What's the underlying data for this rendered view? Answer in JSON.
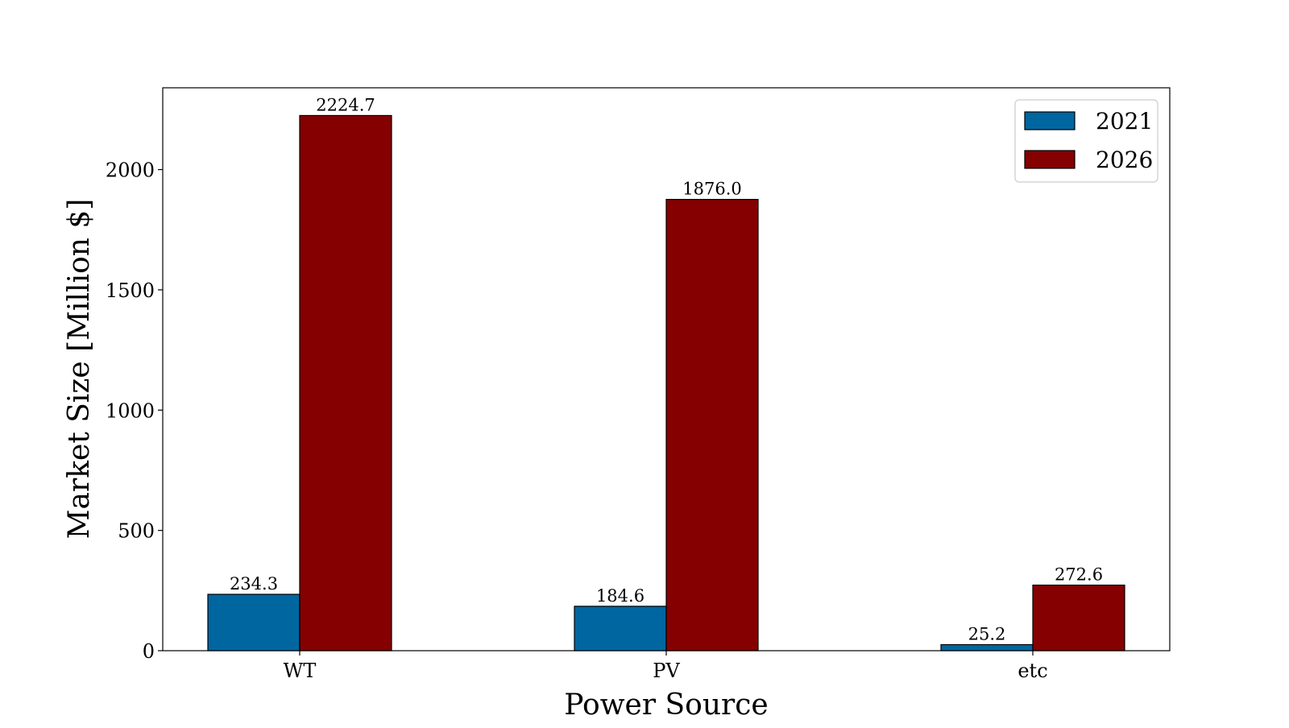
{
  "chart_data": {
    "type": "bar",
    "categories": [
      "WT",
      "PV",
      "etc"
    ],
    "series": [
      {
        "name": "2021",
        "values": [
          234.3,
          184.6,
          25.2
        ],
        "color": "#0066a0",
        "labels": [
          "234.3",
          "184.6",
          "25.2"
        ]
      },
      {
        "name": "2026",
        "values": [
          2224.7,
          1876.0,
          272.6
        ],
        "color": "#850000",
        "labels": [
          "2224.7",
          "1876.0",
          "272.6"
        ]
      }
    ],
    "xlabel": "Power Source",
    "ylabel": "Market Size [Million $]",
    "ylim": [
      0,
      2340
    ],
    "yticks": [
      0,
      500,
      1000,
      1500,
      2000
    ],
    "ytick_labels": [
      "0",
      "500",
      "1000",
      "1500",
      "2000"
    ],
    "legend_position": "top-right",
    "grid": false
  }
}
